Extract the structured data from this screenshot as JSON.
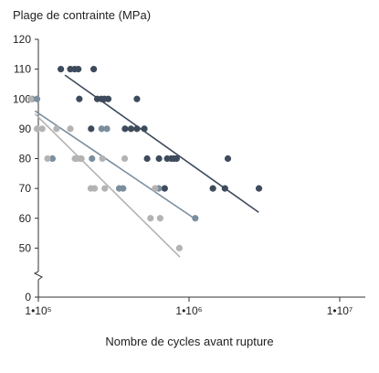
{
  "chart_data": {
    "type": "scatter",
    "title": "",
    "ylabel": "Plage de contrainte (MPa)",
    "xlabel": "Nombre de cycles avant rupture",
    "x_scale": "log",
    "xlim": [
      100000,
      10000000
    ],
    "ylim": [
      0,
      120
    ],
    "y_axis_break": [
      0,
      40
    ],
    "x_ticks": [
      {
        "value": 100000,
        "label": "1•10⁵"
      },
      {
        "value": 1000000,
        "label": "1•10⁶"
      },
      {
        "value": 10000000,
        "label": "1•10⁷"
      }
    ],
    "y_ticks": [
      {
        "value": 0,
        "label": "0"
      },
      {
        "value": 50,
        "label": "50"
      },
      {
        "value": 60,
        "label": "60"
      },
      {
        "value": 70,
        "label": "70"
      },
      {
        "value": 80,
        "label": "80"
      },
      {
        "value": 90,
        "label": "90"
      },
      {
        "value": 100,
        "label": "100"
      },
      {
        "value": 110,
        "label": "110"
      },
      {
        "value": 120,
        "label": "120"
      }
    ],
    "grid": false,
    "legend": "none",
    "series": [
      {
        "color": "#3d4b5c",
        "points": [
          [
            141000,
            110
          ],
          [
            163000,
            110
          ],
          [
            174000,
            110
          ],
          [
            184000,
            110
          ],
          [
            233000,
            110
          ],
          [
            187000,
            100
          ],
          [
            246000,
            100
          ],
          [
            262000,
            100
          ],
          [
            275000,
            100
          ],
          [
            291000,
            100
          ],
          [
            451000,
            100
          ],
          [
            224000,
            90
          ],
          [
            376000,
            90
          ],
          [
            412000,
            90
          ],
          [
            451000,
            90
          ],
          [
            505000,
            90
          ],
          [
            527000,
            80
          ],
          [
            632000,
            80
          ],
          [
            716000,
            80
          ],
          [
            762000,
            80
          ],
          [
            794000,
            80
          ],
          [
            827000,
            80
          ],
          [
            1810000,
            80
          ],
          [
            689000,
            70
          ],
          [
            1440000,
            70
          ],
          [
            1730000,
            70
          ],
          [
            2910000,
            70
          ]
        ],
        "trend": [
          [
            150000,
            108
          ],
          [
            2900000,
            62
          ]
        ]
      },
      {
        "color": "#7a8e9e",
        "points": [
          [
            91000,
            100
          ],
          [
            98000,
            100
          ],
          [
            263000,
            90
          ],
          [
            285000,
            90
          ],
          [
            124000,
            80
          ],
          [
            227000,
            80
          ],
          [
            344000,
            70
          ],
          [
            365000,
            70
          ],
          [
            629000,
            70
          ],
          [
            1100000,
            60
          ]
        ],
        "trend": [
          [
            95000,
            96
          ],
          [
            1080000,
            60
          ]
        ]
      },
      {
        "color": "#b3b3b3",
        "points": [
          [
            89000,
            100
          ],
          [
            98000,
            90
          ],
          [
            106000,
            90
          ],
          [
            132000,
            90
          ],
          [
            163000,
            90
          ],
          [
            115000,
            80
          ],
          [
            175000,
            80
          ],
          [
            180000,
            80
          ],
          [
            193000,
            80
          ],
          [
            190000,
            80
          ],
          [
            266000,
            80
          ],
          [
            223000,
            70
          ],
          [
            236000,
            70
          ],
          [
            276000,
            70
          ],
          [
            374000,
            80
          ],
          [
            595000,
            70
          ],
          [
            555000,
            60
          ],
          [
            643000,
            60
          ],
          [
            862000,
            50
          ]
        ],
        "trend": [
          [
            95000,
            95
          ],
          [
            870000,
            47
          ]
        ]
      }
    ]
  }
}
